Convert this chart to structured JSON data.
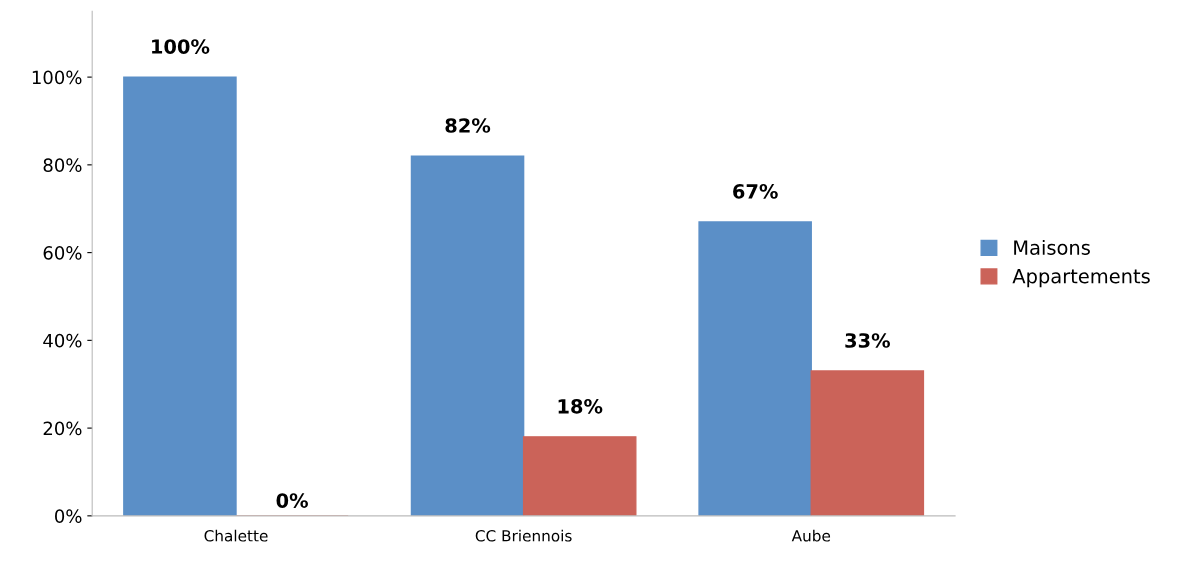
{
  "chart_data": {
    "type": "bar",
    "categories": [
      "Chalette",
      "CC Briennois",
      "Aube"
    ],
    "series": [
      {
        "name": "Maisons",
        "color": "#5b8fc7",
        "values": [
          100,
          82,
          67
        ],
        "value_labels": [
          "100%",
          "82%",
          "67%"
        ]
      },
      {
        "name": "Appartements",
        "color": "#cb6359",
        "values": [
          0,
          18,
          33
        ],
        "value_labels": [
          "0%",
          "18%",
          "33%"
        ]
      }
    ],
    "ylim": [
      0,
      115
    ],
    "yticks": [
      {
        "value": 0,
        "label": "0%"
      },
      {
        "value": 20,
        "label": "20%"
      },
      {
        "value": 40,
        "label": "40%"
      },
      {
        "value": 60,
        "label": "60%"
      },
      {
        "value": 80,
        "label": "80%"
      },
      {
        "value": 100,
        "label": "100%"
      }
    ],
    "grid": false,
    "legend": "right"
  }
}
